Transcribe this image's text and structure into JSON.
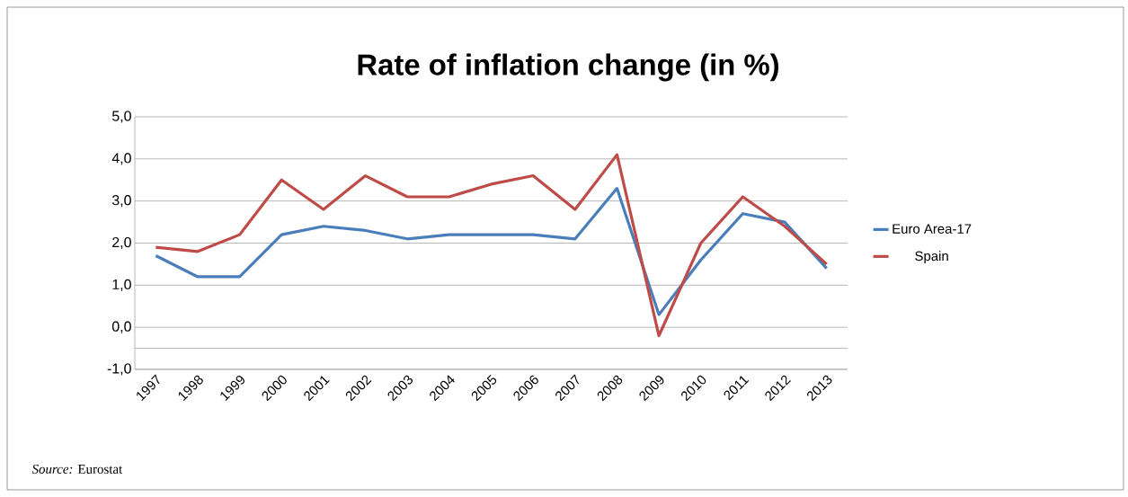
{
  "chart_data": {
    "type": "line",
    "title": "Rate of inflation change (in %)",
    "categories": [
      "1997",
      "1998",
      "1999",
      "2000",
      "2001",
      "2002",
      "2003",
      "2004",
      "2005",
      "2006",
      "2007",
      "2008",
      "2009",
      "2010",
      "2011",
      "2012",
      "2013"
    ],
    "series": [
      {
        "name": "Euro Area-17",
        "color": "#4a7ebb",
        "values": [
          1.7,
          1.2,
          1.2,
          2.2,
          2.4,
          2.3,
          2.1,
          2.2,
          2.2,
          2.2,
          2.1,
          3.3,
          0.3,
          1.6,
          2.7,
          2.5,
          1.4
        ]
      },
      {
        "name": "Spain",
        "color": "#be4b48",
        "values": [
          1.9,
          1.8,
          2.2,
          3.5,
          2.8,
          3.6,
          3.1,
          3.1,
          3.4,
          3.6,
          2.8,
          4.1,
          -0.2,
          2.0,
          3.1,
          2.4,
          1.5
        ]
      }
    ],
    "ylim": [
      -1,
      5
    ],
    "yticks": [
      {
        "value": -1,
        "label": "-1,0"
      },
      {
        "value": -0.5,
        "label": null
      },
      {
        "value": 0,
        "label": "0,0"
      },
      {
        "value": 1,
        "label": "1,0"
      },
      {
        "value": 2,
        "label": "2,0"
      },
      {
        "value": 3,
        "label": "3,0"
      },
      {
        "value": 4,
        "label": "4,0"
      },
      {
        "value": 5,
        "label": "5,0"
      }
    ],
    "grid": "y",
    "legend": "right",
    "marker": "none",
    "line_style": "solid",
    "annotations": [
      "*Source:* Eurostat"
    ]
  }
}
